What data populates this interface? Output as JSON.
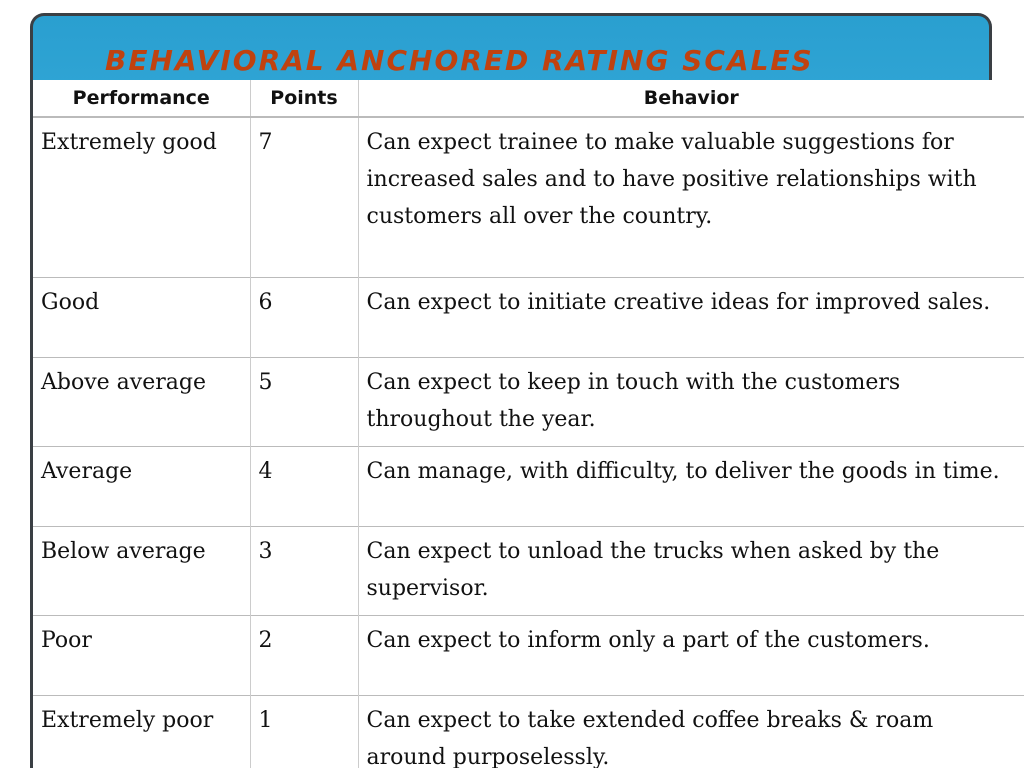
{
  "title": "BEHAVIORAL ANCHORED RATING SCALES",
  "table": {
    "headers": [
      "Performance",
      "Points",
      "Behavior"
    ],
    "rows": [
      [
        "Extremely good",
        "7",
        "Can expect trainee to make valuable suggestions for increased sales and to have positive relationships with customers all over the country."
      ],
      [
        "Good",
        "6",
        "Can expect to initiate creative ideas for improved sales."
      ],
      [
        "Above average",
        "5",
        "Can expect to keep in touch with the customers throughout the year."
      ],
      [
        "Average",
        "4",
        "Can manage, with difficulty, to deliver the goods in time."
      ],
      [
        "Below average",
        "3",
        "Can expect to unload the trucks when asked by the supervisor."
      ],
      [
        "Poor",
        "2",
        "Can expect to inform only a part of the customers."
      ],
      [
        "Extremely poor",
        "1",
        "Can expect to take extended coffee breaks & roam around purposelessly."
      ]
    ]
  }
}
